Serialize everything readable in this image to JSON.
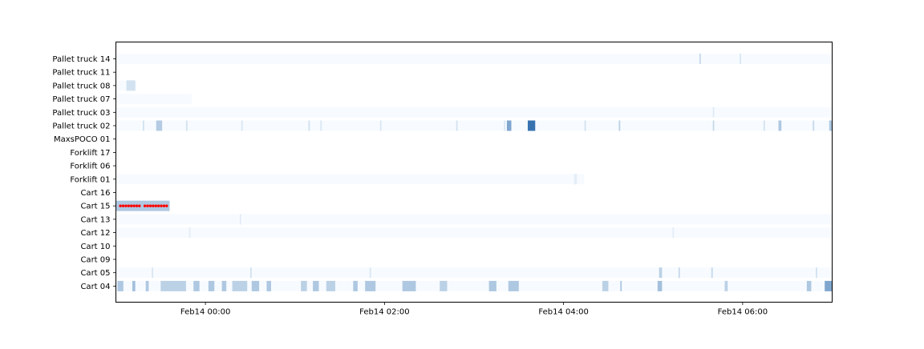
{
  "chart_data": {
    "type": "heatmap",
    "title": "",
    "xlabel": "",
    "ylabel": "",
    "x_range": [
      "2024-02-13 23:00",
      "2024-02-14 07:00"
    ],
    "x_ticks": [
      {
        "label": "Feb14 00:00",
        "value": "2024-02-14 00:00"
      },
      {
        "label": "Feb14 02:00",
        "value": "2024-02-14 02:00"
      },
      {
        "label": "Feb14 04:00",
        "value": "2024-02-14 04:00"
      },
      {
        "label": "Feb14 06:00",
        "value": "2024-02-14 06:00"
      }
    ],
    "rows": [
      {
        "name": "Pallet truck 14",
        "active": [
          "23:00",
          "07:00"
        ],
        "segments": [
          {
            "from": "05:31",
            "to": "05:32",
            "level": 0.2
          },
          {
            "from": "05:58",
            "to": "05:59",
            "level": 0.12
          }
        ]
      },
      {
        "name": "Pallet truck 11",
        "active": null,
        "segments": []
      },
      {
        "name": "Pallet truck 08",
        "active": [
          "23:00",
          "23:14"
        ],
        "segments": [
          {
            "from": "23:07",
            "to": "23:13",
            "level": 0.15
          }
        ]
      },
      {
        "name": "Pallet truck 07",
        "active": [
          "23:00",
          "23:51"
        ],
        "segments": []
      },
      {
        "name": "Pallet truck 03",
        "active": [
          "23:00",
          "07:00"
        ],
        "segments": [
          {
            "from": "05:40",
            "to": "05:41",
            "level": 0.1
          }
        ]
      },
      {
        "name": "Pallet truck 02",
        "active": [
          "23:00",
          "07:00"
        ],
        "segments": [
          {
            "from": "23:18",
            "to": "23:19",
            "level": 0.15
          },
          {
            "from": "23:27",
            "to": "23:31",
            "level": 0.28
          },
          {
            "from": "23:47",
            "to": "23:48",
            "level": 0.15
          },
          {
            "from": "00:24",
            "to": "00:25",
            "level": 0.12
          },
          {
            "from": "01:09",
            "to": "01:10",
            "level": 0.15
          },
          {
            "from": "01:17",
            "to": "01:18",
            "level": 0.12
          },
          {
            "from": "01:57",
            "to": "01:58",
            "level": 0.12
          },
          {
            "from": "02:48",
            "to": "02:49",
            "level": 0.15
          },
          {
            "from": "03:20",
            "to": "03:21",
            "level": 0.12
          },
          {
            "from": "03:22",
            "to": "03:25",
            "level": 0.5
          },
          {
            "from": "03:36",
            "to": "03:41",
            "level": 0.8
          },
          {
            "from": "04:14",
            "to": "04:15",
            "level": 0.15
          },
          {
            "from": "04:37",
            "to": "04:38",
            "level": 0.25
          },
          {
            "from": "05:40",
            "to": "05:41",
            "level": 0.2
          },
          {
            "from": "06:14",
            "to": "06:15",
            "level": 0.15
          },
          {
            "from": "06:24",
            "to": "06:26",
            "level": 0.3
          },
          {
            "from": "06:47",
            "to": "06:48",
            "level": 0.2
          },
          {
            "from": "06:58",
            "to": "07:00",
            "level": 0.3
          }
        ]
      },
      {
        "name": "MaxsPOCO 01",
        "active": null,
        "segments": []
      },
      {
        "name": "Forklift 17",
        "active": null,
        "segments": []
      },
      {
        "name": "Forklift 06",
        "active": null,
        "segments": []
      },
      {
        "name": "Forklift 01",
        "active": [
          "23:00",
          "04:14"
        ],
        "segments": [
          {
            "from": "04:07",
            "to": "04:09",
            "level": 0.08
          }
        ]
      },
      {
        "name": "Cart 16",
        "active": null,
        "segments": []
      },
      {
        "name": "Cart 15",
        "active": [
          "23:00",
          "23:36"
        ],
        "segments": [
          {
            "from": "23:00",
            "to": "23:36",
            "level": 0.3
          }
        ],
        "markers": {
          "from": "23:03",
          "to": "23:34",
          "color": "#ff0000"
        }
      },
      {
        "name": "Cart 13",
        "active": [
          "23:00",
          "07:00"
        ],
        "segments": [
          {
            "from": "00:23",
            "to": "00:24",
            "level": 0.08
          }
        ]
      },
      {
        "name": "Cart 12",
        "active": [
          "23:00",
          "07:00"
        ],
        "segments": [
          {
            "from": "23:49",
            "to": "23:50",
            "level": 0.08
          },
          {
            "from": "05:13",
            "to": "05:14",
            "level": 0.08
          }
        ]
      },
      {
        "name": "Cart 10",
        "active": null,
        "segments": []
      },
      {
        "name": "Cart 09",
        "active": null,
        "segments": []
      },
      {
        "name": "Cart 05",
        "active": [
          "23:00",
          "07:00"
        ],
        "segments": [
          {
            "from": "23:24",
            "to": "23:25",
            "level": 0.12
          },
          {
            "from": "00:30",
            "to": "00:31",
            "level": 0.15
          },
          {
            "from": "01:50",
            "to": "01:51",
            "level": 0.12
          },
          {
            "from": "05:04",
            "to": "05:06",
            "level": 0.25
          },
          {
            "from": "05:17",
            "to": "05:18",
            "level": 0.2
          },
          {
            "from": "05:39",
            "to": "05:40",
            "level": 0.2
          },
          {
            "from": "06:49",
            "to": "06:50",
            "level": 0.15
          }
        ]
      },
      {
        "name": "Cart 04",
        "active": [
          "23:00",
          "07:00"
        ],
        "segments": [
          {
            "from": "23:01",
            "to": "23:05",
            "level": 0.3
          },
          {
            "from": "23:11",
            "to": "23:13",
            "level": 0.35
          },
          {
            "from": "23:20",
            "to": "23:22",
            "level": 0.3
          },
          {
            "from": "23:30",
            "to": "23:47",
            "level": 0.25
          },
          {
            "from": "23:52",
            "to": "23:56",
            "level": 0.3
          },
          {
            "from": "00:02",
            "to": "00:06",
            "level": 0.3
          },
          {
            "from": "00:11",
            "to": "00:14",
            "level": 0.3
          },
          {
            "from": "00:18",
            "to": "00:28",
            "level": 0.25
          },
          {
            "from": "00:31",
            "to": "00:36",
            "level": 0.3
          },
          {
            "from": "00:41",
            "to": "00:44",
            "level": 0.3
          },
          {
            "from": "01:04",
            "to": "01:08",
            "level": 0.25
          },
          {
            "from": "01:12",
            "to": "01:16",
            "level": 0.3
          },
          {
            "from": "01:21",
            "to": "01:27",
            "level": 0.25
          },
          {
            "from": "01:39",
            "to": "01:42",
            "level": 0.3
          },
          {
            "from": "01:47",
            "to": "01:54",
            "level": 0.3
          },
          {
            "from": "02:12",
            "to": "02:21",
            "level": 0.3
          },
          {
            "from": "02:37",
            "to": "02:42",
            "level": 0.25
          },
          {
            "from": "03:10",
            "to": "03:15",
            "level": 0.3
          },
          {
            "from": "03:23",
            "to": "03:30",
            "level": 0.3
          },
          {
            "from": "04:26",
            "to": "04:30",
            "level": 0.25
          },
          {
            "from": "04:38",
            "to": "04:39",
            "level": 0.3
          },
          {
            "from": "05:03",
            "to": "05:06",
            "level": 0.35
          },
          {
            "from": "05:48",
            "to": "05:50",
            "level": 0.25
          },
          {
            "from": "06:43",
            "to": "06:46",
            "level": 0.3
          },
          {
            "from": "06:55",
            "to": "07:00",
            "level": 0.5
          }
        ]
      }
    ],
    "colors": {
      "background_row": "#f7fbff",
      "cmap_low": "#f7fbff",
      "cmap_high": "#08519c",
      "marker": "#ff0000"
    },
    "grid": false,
    "legend": "none"
  }
}
